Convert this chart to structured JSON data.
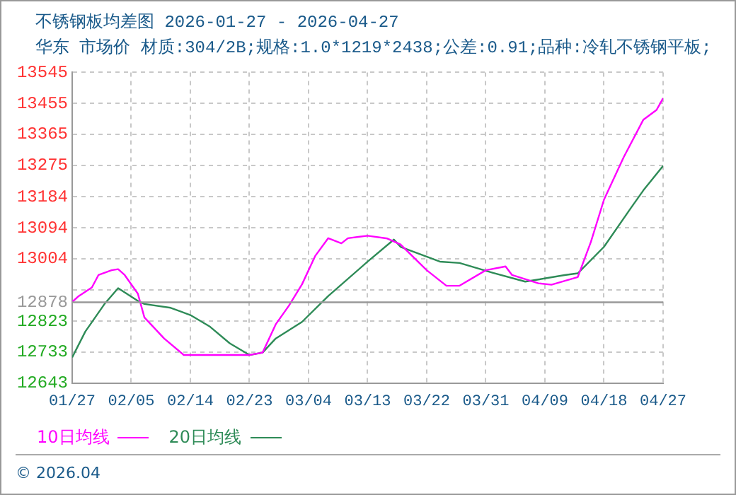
{
  "chart_data": {
    "type": "line",
    "title": "不锈钢板均差图 2026-01-27 - 2026-04-27",
    "subtitle": "华东 市场价 材质:304/2B;规格:1.0*1219*2438;公差:0.91;品种:冷轧不锈钢平板;",
    "annotations": [
      "© 2026.04"
    ],
    "series": [
      {
        "name": "10日均线",
        "color": "#ff00ff",
        "x": [
          "2026-01-27",
          "2026-01-28",
          "2026-01-30",
          "2026-01-31",
          "2026-02-02",
          "2026-02-03",
          "2026-02-04",
          "2026-02-06",
          "2026-02-07",
          "2026-02-10",
          "2026-02-13",
          "2026-02-23",
          "2026-02-25",
          "2026-02-27",
          "2026-03-01",
          "2026-03-03",
          "2026-03-05",
          "2026-03-07",
          "2026-03-09",
          "2026-03-10",
          "2026-03-13",
          "2026-03-16",
          "2026-03-18",
          "2026-03-22",
          "2026-03-25",
          "2026-03-27",
          "2026-03-31",
          "2026-04-03",
          "2026-04-04",
          "2026-04-08",
          "2026-04-10",
          "2026-04-14",
          "2026-04-16",
          "2026-04-18",
          "2026-04-21",
          "2026-04-24",
          "2026-04-26",
          "2026-04-27"
        ],
        "values": [
          12879,
          12896,
          12921,
          12957,
          12971,
          12974,
          12957,
          12903,
          12834,
          12773,
          12725,
          12725,
          12732,
          12814,
          12868,
          12930,
          13012,
          13064,
          13049,
          13064,
          13071,
          13063,
          13046,
          12971,
          12926,
          12926,
          12971,
          12982,
          12957,
          12933,
          12929,
          12951,
          13053,
          13176,
          13299,
          13408,
          13436,
          13470
        ]
      },
      {
        "name": "20日均线",
        "color": "#2e8b57",
        "x": [
          "2026-01-27",
          "2026-01-29",
          "2026-02-01",
          "2026-02-03",
          "2026-02-06",
          "2026-02-07",
          "2026-02-11",
          "2026-02-14",
          "2026-02-17",
          "2026-02-20",
          "2026-02-23",
          "2026-02-25",
          "2026-02-27",
          "2026-03-03",
          "2026-03-07",
          "2026-03-13",
          "2026-03-17",
          "2026-03-18",
          "2026-03-24",
          "2026-03-27",
          "2026-04-01",
          "2026-04-06",
          "2026-04-08",
          "2026-04-12",
          "2026-04-14",
          "2026-04-18",
          "2026-04-22",
          "2026-04-24",
          "2026-04-27"
        ],
        "values": [
          12718,
          12793,
          12875,
          12919,
          12882,
          12873,
          12862,
          12841,
          12807,
          12759,
          12725,
          12732,
          12773,
          12821,
          12896,
          12996,
          13060,
          13039,
          12996,
          12992,
          12964,
          12938,
          12944,
          12957,
          12962,
          13039,
          13149,
          13203,
          13274
        ]
      }
    ],
    "xlim": [
      "2026-01-27",
      "2026-04-27"
    ],
    "xticks": [
      {
        "value": "2026-01-27",
        "label": "01/27"
      },
      {
        "value": "2026-02-05",
        "label": "02/05"
      },
      {
        "value": "2026-02-14",
        "label": "02/14"
      },
      {
        "value": "2026-02-23",
        "label": "02/23"
      },
      {
        "value": "2026-03-04",
        "label": "03/04"
      },
      {
        "value": "2026-03-13",
        "label": "03/13"
      },
      {
        "value": "2026-03-22",
        "label": "03/22"
      },
      {
        "value": "2026-03-31",
        "label": "03/31"
      },
      {
        "value": "2026-04-09",
        "label": "04/09"
      },
      {
        "value": "2026-04-18",
        "label": "04/18"
      },
      {
        "value": "2026-04-27",
        "label": "04/27"
      }
    ],
    "ylim": [
      12643,
      13545
    ],
    "yticks": [
      12643,
      12733,
      12823,
      {
        "value": 12913,
        "label": null
      },
      13004,
      13094,
      13184,
      13275,
      13365,
      13455,
      13545
    ],
    "ref_lines": [
      {
        "axis": "y",
        "value": 12878,
        "label": "12878",
        "color": "#999999"
      }
    ],
    "grid": true,
    "legend": "bottom left",
    "marker": "none",
    "line_style": "solid"
  }
}
